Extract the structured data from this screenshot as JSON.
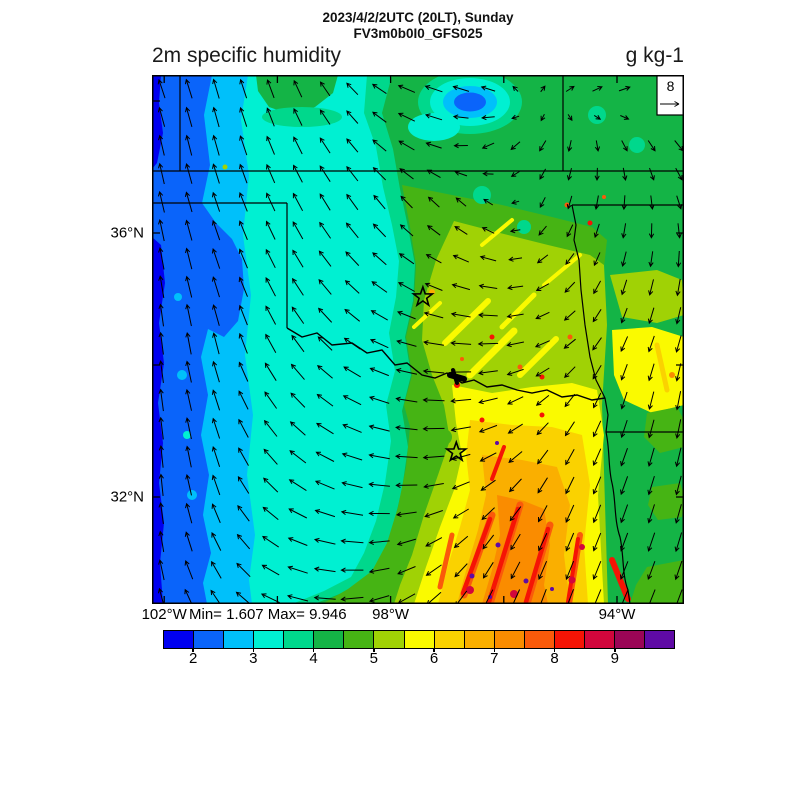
{
  "header": {
    "title_line1": "2023/4/2/2UTC (20LT), Sunday",
    "title_line2": "FV3m0b0I0_GFS025",
    "left_title": "2m specific humidity",
    "units_label": "g kg-1"
  },
  "chart_data": {
    "type": "heatmap",
    "title": "2023/4/2/2UTC (20LT), Sunday",
    "subtitle": "FV3m0b0I0_GFS025",
    "variable": "2m specific humidity",
    "units": "g kg-1",
    "stats_text": "Min= 1.607 Max= 9.946",
    "min": 1.607,
    "max": 9.946,
    "domain": {
      "lon_west": 102.2,
      "lon_east": 92.8,
      "lat_south": 30.4,
      "lat_north": 38.4
    },
    "x_axis": {
      "labeled_ticks": [
        {
          "label": "102°W",
          "lon": 102
        },
        {
          "label": "98°W",
          "lon": 98
        },
        {
          "label": "94°W",
          "lon": 94
        }
      ],
      "minor_tick_lons": [
        102,
        100,
        98,
        96,
        94
      ]
    },
    "y_axis": {
      "labeled_ticks": [
        {
          "label": "36°N",
          "lat": 36
        },
        {
          "label": "32°N",
          "lat": 32
        }
      ],
      "minor_tick_lats": [
        38,
        36,
        34,
        32
      ]
    },
    "colorbar": {
      "levels": [
        1.5,
        2,
        2.5,
        3,
        3.5,
        4,
        4.5,
        5,
        5.5,
        6,
        6.5,
        7,
        7.5,
        8,
        8.5,
        9,
        9.5,
        10
      ],
      "colors": [
        "#0000F0",
        "#0A64FA",
        "#00C0FA",
        "#00F0D2",
        "#00D88C",
        "#14B446",
        "#46B414",
        "#A0D205",
        "#FAFA00",
        "#FAD200",
        "#FAAF00",
        "#FA8C00",
        "#FA5A0A",
        "#F51405",
        "#D2063C",
        "#9B0556",
        "#5F0AA5"
      ],
      "tick_labels": [
        "2",
        "3",
        "4",
        "5",
        "6",
        "7",
        "8",
        "9"
      ]
    },
    "reference_vector": {
      "label": "8"
    },
    "stars": [
      {
        "lat": 35.03,
        "lon": 97.43
      },
      {
        "lat": 32.68,
        "lon": 96.84
      }
    ],
    "wind_grid": {
      "cols": 9,
      "rows": 9,
      "vectors": [
        [
          [
            -0.3,
            -0.8
          ],
          [
            -0.25,
            -0.85
          ],
          [
            -0.3,
            -0.8
          ],
          [
            -0.5,
            -0.5
          ],
          [
            -0.8,
            -0.25
          ],
          [
            -0.7,
            -0.3
          ],
          [
            0.45,
            -0.45
          ],
          [
            0.55,
            -0.35
          ],
          [
            0.6,
            -0.3
          ]
        ],
        [
          [
            -0.2,
            -0.9
          ],
          [
            -0.25,
            -0.9
          ],
          [
            -0.35,
            -0.8
          ],
          [
            -0.5,
            -0.6
          ],
          [
            -0.75,
            -0.35
          ],
          [
            -0.55,
            0.25
          ],
          [
            -0.25,
            0.5
          ],
          [
            0.25,
            0.45
          ],
          [
            0.4,
            0.45
          ]
        ],
        [
          [
            -0.2,
            -0.95
          ],
          [
            -0.3,
            -0.85
          ],
          [
            -0.4,
            -0.8
          ],
          [
            -0.5,
            -0.7
          ],
          [
            -0.5,
            -0.5
          ],
          [
            -0.4,
            -0.35
          ],
          [
            -0.2,
            0.55
          ],
          [
            -0.1,
            0.65
          ],
          [
            0.2,
            0.6
          ]
        ],
        [
          [
            -0.15,
            -1.0
          ],
          [
            -0.3,
            -0.9
          ],
          [
            -0.45,
            -0.8
          ],
          [
            -0.6,
            -0.6
          ],
          [
            -0.7,
            -0.4
          ],
          [
            -0.8,
            -0.2
          ],
          [
            -0.5,
            0.4
          ],
          [
            -0.2,
            0.65
          ],
          [
            -0.1,
            0.75
          ]
        ],
        [
          [
            -0.1,
            -1.0
          ],
          [
            -0.25,
            -0.95
          ],
          [
            -0.5,
            -0.8
          ],
          [
            -0.7,
            -0.5
          ],
          [
            -0.9,
            -0.2
          ],
          [
            -0.9,
            0.0
          ],
          [
            -0.6,
            0.3
          ],
          [
            -0.3,
            0.65
          ],
          [
            -0.2,
            0.75
          ]
        ],
        [
          [
            -0.1,
            -1.0
          ],
          [
            -0.3,
            -0.9
          ],
          [
            -0.6,
            -0.7
          ],
          [
            -0.8,
            -0.4
          ],
          [
            -1.0,
            -0.1
          ],
          [
            -0.85,
            0.2
          ],
          [
            -0.5,
            0.5
          ],
          [
            -0.25,
            0.75
          ],
          [
            -0.15,
            0.85
          ]
        ],
        [
          [
            -0.05,
            -1.0
          ],
          [
            -0.3,
            -0.9
          ],
          [
            -0.7,
            -0.6
          ],
          [
            -0.9,
            -0.25
          ],
          [
            -1.0,
            0.0
          ],
          [
            -0.7,
            0.4
          ],
          [
            -0.4,
            0.7
          ],
          [
            -0.3,
            0.8
          ],
          [
            -0.2,
            0.85
          ]
        ],
        [
          [
            -0.1,
            -0.95
          ],
          [
            -0.4,
            -0.8
          ],
          [
            -0.8,
            -0.4
          ],
          [
            -1.0,
            -0.1
          ],
          [
            -0.8,
            0.3
          ],
          [
            -0.5,
            0.6
          ],
          [
            -0.35,
            0.8
          ],
          [
            -0.3,
            0.8
          ],
          [
            -0.25,
            0.85
          ]
        ],
        [
          [
            -0.2,
            -0.9
          ],
          [
            -0.5,
            -0.7
          ],
          [
            -0.9,
            -0.3
          ],
          [
            -1.0,
            0.1
          ],
          [
            -0.7,
            0.5
          ],
          [
            -0.4,
            0.8
          ],
          [
            -0.3,
            0.85
          ],
          [
            -0.35,
            0.8
          ],
          [
            -0.3,
            0.8
          ]
        ]
      ]
    }
  }
}
